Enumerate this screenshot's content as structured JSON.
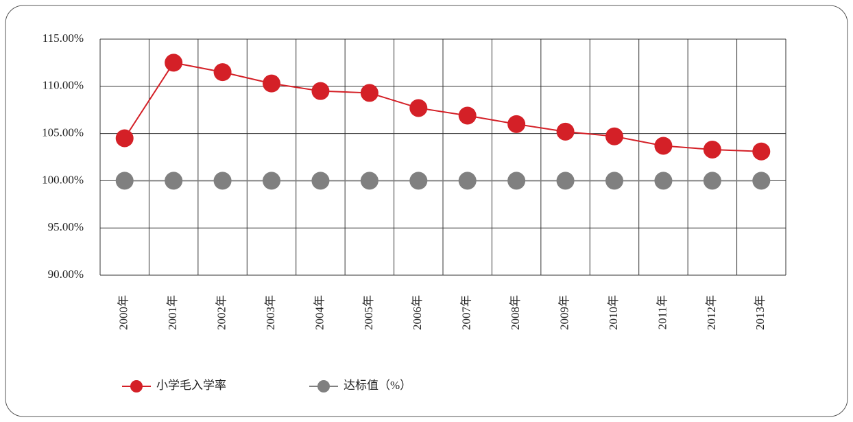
{
  "chart_data": {
    "type": "line",
    "categories": [
      "2000年",
      "2001年",
      "2002年",
      "2003年",
      "2004年",
      "2005年",
      "2006年",
      "2007年",
      "2008年",
      "2009年",
      "2010年",
      "2011年",
      "2012年",
      "2013年"
    ],
    "series": [
      {
        "name": "小学毛入学率",
        "color": "#d42027",
        "values": [
          104.5,
          112.5,
          111.5,
          110.3,
          109.5,
          109.3,
          107.7,
          106.9,
          106.0,
          105.2,
          104.7,
          103.7,
          103.3,
          103.1
        ]
      },
      {
        "name": "达标值（%）",
        "color": "#808080",
        "values": [
          100,
          100,
          100,
          100,
          100,
          100,
          100,
          100,
          100,
          100,
          100,
          100,
          100,
          100
        ]
      }
    ],
    "ylim": [
      90,
      115
    ],
    "yticks": [
      {
        "value": 90,
        "label": "90.00%"
      },
      {
        "value": 95,
        "label": "95.00%"
      },
      {
        "value": 100,
        "label": "100.00%"
      },
      {
        "value": 105,
        "label": "105.00%"
      },
      {
        "value": 110,
        "label": "110.00%"
      },
      {
        "value": 115,
        "label": "115.00%"
      }
    ],
    "grid": true,
    "legend": "bottom-left"
  }
}
